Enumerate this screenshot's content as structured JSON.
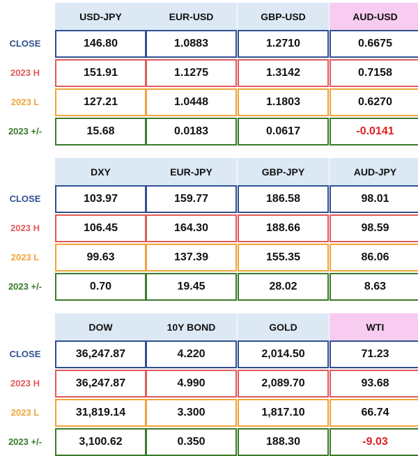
{
  "row_labels": {
    "close": "CLOSE",
    "high": "2023 H",
    "low": "2023 L",
    "change": "2023 +/-"
  },
  "colors": {
    "header_bg": "#dce9f5",
    "header_highlight_bg": "#f8ccf0",
    "close": "#2f4f8f",
    "high": "#e05a5a",
    "low": "#f0a43a",
    "change": "#3a7a2a",
    "negative_text": "#e02020"
  },
  "groups": [
    {
      "headers": [
        "USD-JPY",
        "EUR-USD",
        "GBP-USD",
        "AUD-USD"
      ],
      "highlight_header": 3,
      "close": [
        "146.80",
        "1.0883",
        "1.2710",
        "0.6675"
      ],
      "high": [
        "151.91",
        "1.1275",
        "1.3142",
        "0.7158"
      ],
      "low": [
        "127.21",
        "1.0448",
        "1.1803",
        "0.6270"
      ],
      "change": [
        "15.68",
        "0.0183",
        "0.0617",
        "-0.0141"
      ]
    },
    {
      "headers": [
        "DXY",
        "EUR-JPY",
        "GBP-JPY",
        "AUD-JPY"
      ],
      "highlight_header": -1,
      "close": [
        "103.97",
        "159.77",
        "186.58",
        "98.01"
      ],
      "high": [
        "106.45",
        "164.30",
        "188.66",
        "98.59"
      ],
      "low": [
        "99.63",
        "137.39",
        "155.35",
        "86.06"
      ],
      "change": [
        "0.70",
        "19.45",
        "28.02",
        "8.63"
      ]
    },
    {
      "headers": [
        "DOW",
        "10Y BOND",
        "GOLD",
        "WTI"
      ],
      "highlight_header": 3,
      "close": [
        "36,247.87",
        "4.220",
        "2,014.50",
        "71.23"
      ],
      "high": [
        "36,247.87",
        "4.990",
        "2,089.70",
        "93.68"
      ],
      "low": [
        "31,819.14",
        "3.300",
        "1,817.10",
        "66.74"
      ],
      "change": [
        "3,100.62",
        "0.350",
        "188.30",
        "-9.03"
      ]
    }
  ]
}
